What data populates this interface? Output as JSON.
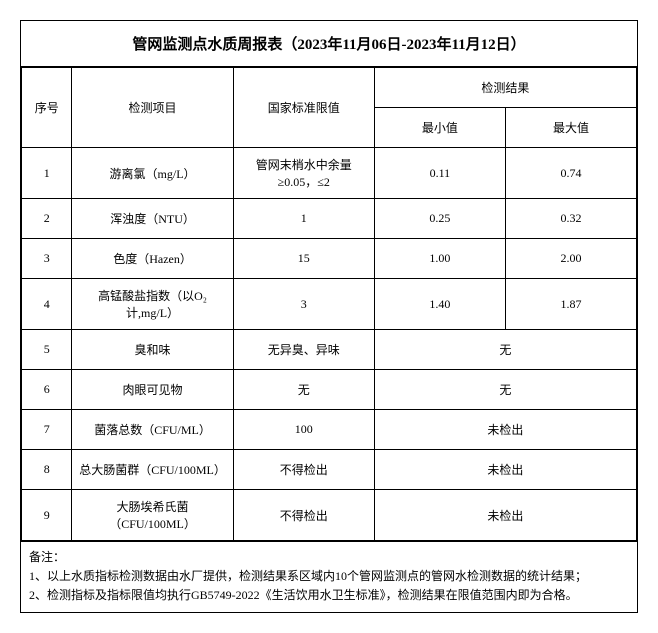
{
  "title": "管网监测点水质周报表（2023年11月06日-2023年11月12日）",
  "headers": {
    "seq": "序号",
    "item": "检测项目",
    "standard": "国家标准限值",
    "result": "检测结果",
    "min": "最小值",
    "max": "最大值"
  },
  "rows": [
    {
      "seq": "1",
      "item": "游离氯（mg/L）",
      "standard": "管网末梢水中余量≥0.05，≤2",
      "min": "0.11",
      "max": "0.74",
      "merged": false
    },
    {
      "seq": "2",
      "item": "浑浊度（NTU）",
      "standard": "1",
      "min": "0.25",
      "max": "0.32",
      "merged": false
    },
    {
      "seq": "3",
      "item": "色度（Hazen）",
      "standard": "15",
      "min": "1.00",
      "max": "2.00",
      "merged": false
    },
    {
      "seq": "4",
      "item": "高锰酸盐指数（以O₂计,mg/L）",
      "standard": "3",
      "min": "1.40",
      "max": "1.87",
      "merged": false
    },
    {
      "seq": "5",
      "item": "臭和味",
      "standard": "无异臭、异味",
      "result": "无",
      "merged": true
    },
    {
      "seq": "6",
      "item": "肉眼可见物",
      "standard": "无",
      "result": "无",
      "merged": true
    },
    {
      "seq": "7",
      "item": "菌落总数（CFU/ML）",
      "standard": "100",
      "result": "未检出",
      "merged": true
    },
    {
      "seq": "8",
      "item": "总大肠菌群（CFU/100ML）",
      "standard": "不得检出",
      "result": "未检出",
      "merged": true
    },
    {
      "seq": "9",
      "item": "大肠埃希氏菌（CFU/100ML）",
      "standard": "不得检出",
      "result": "未检出",
      "merged": true
    }
  ],
  "notes": {
    "label": "备注：",
    "line1": "1、以上水质指标检测数据由水厂提供，检测结果系区域内10个管网监测点的管网水检测数据的统计结果；",
    "line2": "2、检测指标及指标限值均执行GB5749-2022《生活饮用水卫生标准》，检测结果在限值范围内即为合格。"
  }
}
